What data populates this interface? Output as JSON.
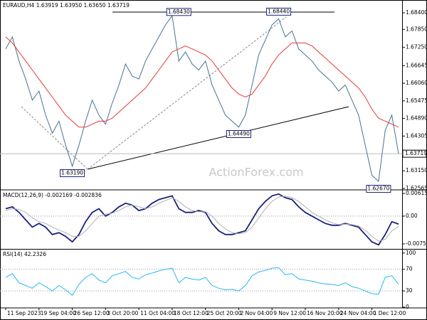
{
  "chart_data": [
    {
      "type": "line",
      "title": "EURAUD,H4  1.63919 1.63950 1.63650 1.63719",
      "watermark": "ActionForex.com",
      "x": [
        0,
        1,
        2,
        3,
        4,
        5,
        6,
        7,
        8,
        9,
        10,
        11,
        12,
        13,
        14,
        15,
        16,
        17,
        18,
        19,
        20,
        21,
        22,
        23,
        24,
        25,
        26,
        27,
        28,
        29,
        30,
        31,
        32,
        33,
        34,
        35,
        36,
        37,
        38,
        39,
        40,
        41,
        42,
        43,
        44,
        45,
        46,
        47,
        48,
        49,
        50,
        51,
        52,
        53,
        54,
        55,
        56,
        57,
        58,
        59
      ],
      "xlim": [
        0,
        59
      ],
      "ylim": [
        1.6254,
        1.6878
      ],
      "yticks": [
        {
          "value": 1.684,
          "label": "1.68400"
        },
        {
          "value": 1.6785,
          "label": "1.67850"
        },
        {
          "value": 1.6725,
          "label": "1.67250"
        },
        1.66645,
        {
          "value": 1.6606,
          "label": "1.66060"
        },
        1.65475,
        {
          "value": 1.6489,
          "label": "1.64890"
        },
        1.64305,
        {
          "value": 1.6315,
          "label": "1.63150"
        },
        1.62565
      ],
      "last": {
        "value": 1.63719,
        "label": "1.63719"
      },
      "annotations": [
        {
          "x": 26,
          "value": 1.6843,
          "label": "1.68430"
        },
        {
          "x": 41,
          "value": 1.6844,
          "label": "1.68440"
        },
        {
          "x": 35,
          "value": 1.6449,
          "label": "1.64490"
        },
        {
          "x": 10,
          "value": 1.6319,
          "label": "1.63190"
        },
        {
          "x": 56,
          "value": 1.6267,
          "label": "1.62670"
        }
      ],
      "series": [
        {
          "color": "#4a7191",
          "values": [
            1.672,
            1.676,
            1.668,
            1.662,
            1.655,
            1.658,
            1.65,
            1.644,
            1.648,
            1.64,
            1.633,
            1.64,
            1.648,
            1.655,
            1.65,
            1.647,
            1.654,
            1.66,
            1.667,
            1.663,
            1.662,
            1.668,
            1.672,
            1.676,
            1.68,
            1.683,
            1.668,
            1.671,
            1.667,
            1.665,
            1.668,
            1.66,
            1.655,
            1.65,
            1.648,
            1.646,
            1.65,
            1.66,
            1.67,
            1.675,
            1.68,
            1.682,
            1.676,
            1.678,
            1.672,
            1.67,
            1.668,
            1.665,
            1.663,
            1.661,
            1.658,
            1.66,
            1.655,
            1.65,
            1.64,
            1.63,
            1.628,
            1.645,
            1.65,
            1.6372
          ]
        },
        {
          "color": "#e53935",
          "values": [
            1.676,
            1.674,
            1.671,
            1.668,
            1.665,
            1.662,
            1.659,
            1.656,
            1.653,
            1.65,
            1.648,
            1.646,
            1.646,
            1.647,
            1.648,
            1.648,
            1.649,
            1.651,
            1.653,
            1.655,
            1.657,
            1.659,
            1.662,
            1.665,
            1.668,
            1.671,
            1.672,
            1.673,
            1.672,
            1.671,
            1.67,
            1.668,
            1.665,
            1.662,
            1.659,
            1.657,
            1.656,
            1.657,
            1.66,
            1.663,
            1.667,
            1.67,
            1.672,
            1.674,
            1.674,
            1.674,
            1.673,
            1.671,
            1.669,
            1.667,
            1.665,
            1.663,
            1.661,
            1.659,
            1.656,
            1.652,
            1.649,
            1.648,
            1.647,
            1.646
          ]
        }
      ]
    },
    {
      "type": "line",
      "title": "MACD(12,26,9) -0.002169 -0.002836",
      "x": [
        0,
        1,
        2,
        3,
        4,
        5,
        6,
        7,
        8,
        9,
        10,
        11,
        12,
        13,
        14,
        15,
        16,
        17,
        18,
        19,
        20,
        21,
        22,
        23,
        24,
        25,
        26,
        27,
        28,
        29,
        30,
        31,
        32,
        33,
        34,
        35,
        36,
        37,
        38,
        39,
        40,
        41,
        42,
        43,
        44,
        45,
        46,
        47,
        48,
        49,
        50,
        51,
        52,
        53,
        54,
        55,
        56,
        57,
        58,
        59
      ],
      "xlim": [
        0,
        59
      ],
      "ylim": [
        -0.00871,
        0.00693
      ],
      "yticks": [
        0.006154,
        {
          "value": 0,
          "label": "0.00"
        },
        -0.007555
      ],
      "series": [
        {
          "color": "#1a237e",
          "values": [
            0.002,
            0.0025,
            0.001,
            -0.001,
            -0.003,
            -0.002,
            -0.003,
            -0.005,
            -0.0045,
            -0.0055,
            -0.007,
            -0.005,
            -0.0015,
            0.001,
            0.002,
            0,
            0.001,
            0.0025,
            0.0035,
            0.003,
            0.0015,
            0.002,
            0.0035,
            0.0045,
            0.005,
            0.0055,
            0.002,
            0.001,
            0.001,
            0.0015,
            0.001,
            -0.002,
            -0.004,
            -0.005,
            -0.005,
            -0.0045,
            -0.004,
            -0.001,
            0.002,
            0.004,
            0.0055,
            0.006,
            0.005,
            0.0045,
            0.0025,
            0.001,
            0,
            -0.001,
            -0.002,
            -0.0025,
            -0.0025,
            -0.002,
            -0.0025,
            -0.003,
            -0.005,
            -0.007,
            -0.0078,
            -0.005,
            -0.0015,
            -0.002169
          ]
        },
        {
          "color": "#b0b0b0",
          "values": [
            0.0015,
            0.002,
            0.0018,
            0.001,
            -0.0005,
            -0.0015,
            -0.002,
            -0.003,
            -0.0038,
            -0.0045,
            -0.0055,
            -0.0055,
            -0.004,
            -0.002,
            0,
            0.0005,
            0.0008,
            0.0015,
            0.0025,
            0.003,
            0.0025,
            0.002,
            0.0025,
            0.0035,
            0.0042,
            0.005,
            0.004,
            0.0025,
            0.0015,
            0.0012,
            0.0012,
            0,
            -0.002,
            -0.0035,
            -0.0045,
            -0.0048,
            -0.0045,
            -0.003,
            -0.0005,
            0.002,
            0.004,
            0.0052,
            0.0054,
            0.005,
            0.004,
            0.0025,
            0.001,
            0,
            -0.001,
            -0.0018,
            -0.0023,
            -0.0022,
            -0.0023,
            -0.0027,
            -0.0038,
            -0.0055,
            -0.0068,
            -0.0063,
            -0.004,
            -0.002836
          ]
        }
      ]
    },
    {
      "type": "line",
      "title": "RSI(14) 42.2326",
      "x": [
        0,
        1,
        2,
        3,
        4,
        5,
        6,
        7,
        8,
        9,
        10,
        11,
        12,
        13,
        14,
        15,
        16,
        17,
        18,
        19,
        20,
        21,
        22,
        23,
        24,
        25,
        26,
        27,
        28,
        29,
        30,
        31,
        32,
        33,
        34,
        35,
        36,
        37,
        38,
        39,
        40,
        41,
        42,
        43,
        44,
        45,
        46,
        47,
        48,
        49,
        50,
        51,
        52,
        53,
        54,
        55,
        56,
        57,
        58,
        59
      ],
      "xlim": [
        0,
        59
      ],
      "ylim": [
        0,
        105
      ],
      "yticks": [
        100,
        70,
        30,
        0
      ],
      "xticks": [
        {
          "value": 0,
          "label": "11 Sep 2023"
        },
        {
          "value": 5,
          "label": "19 Sep 04:00"
        },
        {
          "value": 10,
          "label": "26 Sep 12:00"
        },
        {
          "value": 15,
          "label": "3 Oct 20:00"
        },
        {
          "value": 20,
          "label": "11 Oct 04:00"
        },
        {
          "value": 25,
          "label": "18 Oct 12:00"
        },
        {
          "value": 30,
          "label": "25 Oct 20:00"
        },
        {
          "value": 35,
          "label": "2 Nov 04:00"
        },
        {
          "value": 40,
          "label": "9 Nov 12:00"
        },
        {
          "value": 45,
          "label": "16 Nov 20:00"
        },
        {
          "value": 50,
          "label": "24 Nov 04:00"
        },
        {
          "value": 55,
          "label": "1 Dec 12:00"
        }
      ],
      "series": [
        {
          "color": "#29b6f6",
          "values": [
            55,
            62,
            45,
            40,
            35,
            45,
            38,
            30,
            40,
            32,
            22,
            42,
            55,
            62,
            50,
            45,
            58,
            62,
            66,
            55,
            52,
            60,
            63,
            67,
            70,
            72,
            45,
            55,
            52,
            50,
            55,
            40,
            35,
            32,
            33,
            30,
            40,
            58,
            65,
            68,
            72,
            73,
            60,
            62,
            52,
            50,
            48,
            45,
            43,
            42,
            40,
            45,
            38,
            35,
            30,
            25,
            24,
            55,
            58,
            42.2326
          ]
        }
      ]
    }
  ]
}
